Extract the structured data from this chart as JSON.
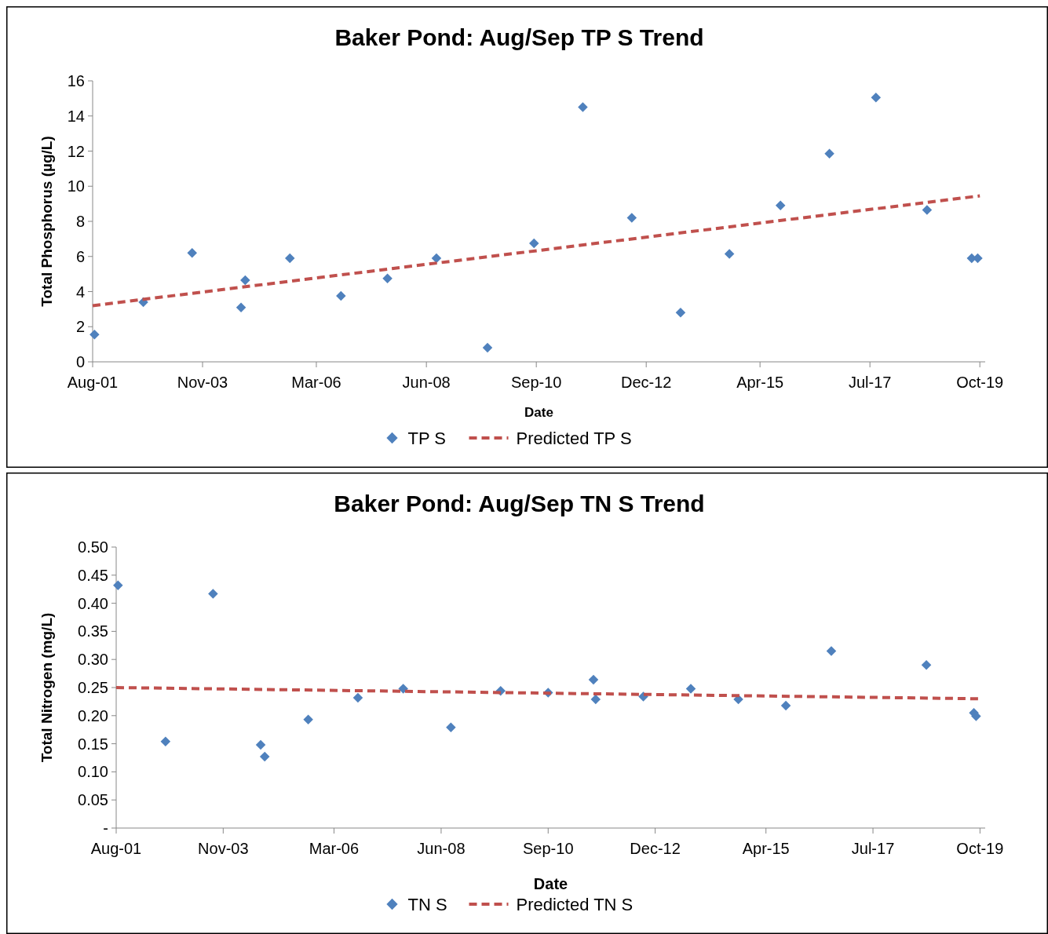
{
  "chart_data": [
    {
      "type": "scatter",
      "title": "Baker Pond:  Aug/Sep TP S Trend",
      "xlabel": "Date",
      "ylabel": "Total Phosphorus (µg/L)",
      "xlim": [
        "2001-08-01",
        "2019-11-10"
      ],
      "xticks": [
        {
          "value": "2001-08-01",
          "label": "Aug-01"
        },
        {
          "value": "2003-11-01",
          "label": "Nov-03"
        },
        {
          "value": "2006-03-01",
          "label": "Mar-06"
        },
        {
          "value": "2008-06-01",
          "label": "Jun-08"
        },
        {
          "value": "2010-09-01",
          "label": "Sep-10"
        },
        {
          "value": "2012-12-01",
          "label": "Dec-12"
        },
        {
          "value": "2015-04-01",
          "label": "Apr-15"
        },
        {
          "value": "2017-07-01",
          "label": "Jul-17"
        },
        {
          "value": "2019-10-01",
          "label": "Oct-19"
        }
      ],
      "ylim": [
        0,
        16
      ],
      "yticks": [
        0,
        2,
        4,
        6,
        8,
        10,
        12,
        14,
        16
      ],
      "grid": false,
      "legend": "bottom",
      "series": [
        {
          "name": "TP S",
          "type": "scatter",
          "color": "#4f81bd",
          "marker": "diamond",
          "x": [
            "2001-08-15",
            "2002-08-15",
            "2003-08-15",
            "2004-08-15",
            "2004-09-15",
            "2005-08-15",
            "2006-09-01",
            "2007-08-15",
            "2008-08-15",
            "2009-09-01",
            "2010-08-15",
            "2011-08-15",
            "2012-08-15",
            "2013-08-15",
            "2014-08-15",
            "2015-09-01",
            "2016-09-01",
            "2017-08-15",
            "2018-09-01",
            "2019-08-01",
            "2019-09-15"
          ],
          "values": [
            1.55,
            3.4,
            6.2,
            3.1,
            4.65,
            5.9,
            3.75,
            4.75,
            5.9,
            0.8,
            6.75,
            14.5,
            8.2,
            2.8,
            6.15,
            8.9,
            11.85,
            15.05,
            8.65,
            5.9,
            5.9
          ]
        },
        {
          "name": "Predicted TP S",
          "type": "line",
          "color": "#c0504d",
          "line_style": "dashed",
          "x": [
            "2001-08-01",
            "2019-10-01"
          ],
          "values": [
            3.2,
            9.45
          ]
        }
      ]
    },
    {
      "type": "scatter",
      "title": "Baker Pond:  Aug/Sep TN S Trend",
      "xlabel": "Date",
      "ylabel": "Total Nitrogen (mg/L)",
      "xlim": [
        "2001-08-01",
        "2019-11-10"
      ],
      "xticks": [
        {
          "value": "2001-08-01",
          "label": "Aug-01"
        },
        {
          "value": "2003-11-01",
          "label": "Nov-03"
        },
        {
          "value": "2006-03-01",
          "label": "Mar-06"
        },
        {
          "value": "2008-06-01",
          "label": "Jun-08"
        },
        {
          "value": "2010-09-01",
          "label": "Sep-10"
        },
        {
          "value": "2012-12-01",
          "label": "Dec-12"
        },
        {
          "value": "2015-04-01",
          "label": "Apr-15"
        },
        {
          "value": "2017-07-01",
          "label": "Jul-17"
        },
        {
          "value": "2019-10-01",
          "label": "Oct-19"
        }
      ],
      "ylim": [
        0,
        0.5
      ],
      "yticks": [
        {
          "value": 0,
          "label": "-"
        },
        {
          "value": 0.05,
          "label": "0.05"
        },
        {
          "value": 0.1,
          "label": "0.10"
        },
        {
          "value": 0.15,
          "label": "0.15"
        },
        {
          "value": 0.2,
          "label": "0.20"
        },
        {
          "value": 0.25,
          "label": "0.25"
        },
        {
          "value": 0.3,
          "label": "0.30"
        },
        {
          "value": 0.35,
          "label": "0.35"
        },
        {
          "value": 0.4,
          "label": "0.40"
        },
        {
          "value": 0.45,
          "label": "0.45"
        },
        {
          "value": 0.5,
          "label": "0.50"
        }
      ],
      "grid": false,
      "legend": "bottom",
      "series": [
        {
          "name": "TN S",
          "type": "scatter",
          "color": "#4f81bd",
          "marker": "diamond",
          "x": [
            "2001-08-15",
            "2002-08-15",
            "2003-08-15",
            "2004-08-15",
            "2004-09-15",
            "2005-08-15",
            "2006-09-01",
            "2007-08-15",
            "2008-08-15",
            "2009-09-01",
            "2010-09-01",
            "2011-08-15",
            "2011-09-01",
            "2012-09-01",
            "2013-09-01",
            "2014-09-01",
            "2015-09-01",
            "2016-08-15",
            "2018-08-15",
            "2019-08-15",
            "2019-09-01"
          ],
          "values": [
            0.432,
            0.154,
            0.417,
            0.148,
            0.127,
            0.193,
            0.232,
            0.248,
            0.179,
            0.244,
            0.241,
            0.264,
            0.229,
            0.234,
            0.248,
            0.229,
            0.218,
            0.315,
            0.29,
            0.205,
            0.199
          ]
        },
        {
          "name": "Predicted TN S",
          "type": "line",
          "color": "#c0504d",
          "line_style": "dashed",
          "x": [
            "2001-08-01",
            "2019-10-01"
          ],
          "values": [
            0.25,
            0.23
          ]
        }
      ]
    }
  ]
}
